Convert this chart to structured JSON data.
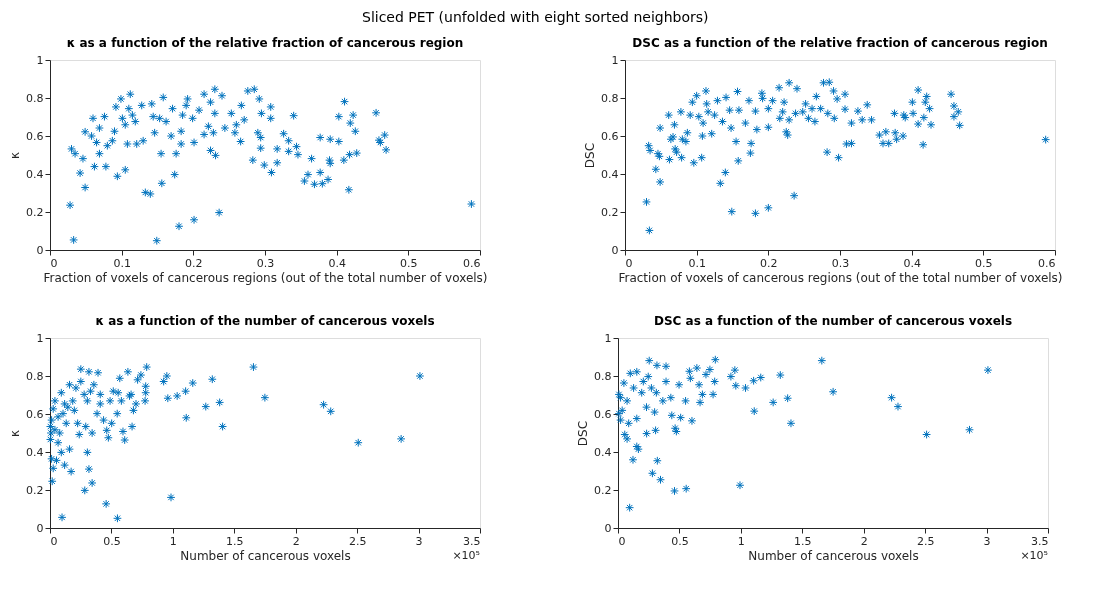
{
  "chart_data": [
    {
      "type": "scatter",
      "title": "κ as a function of the relative fraction of cancerous region",
      "xlabel": "Fraction of voxels of cancerous regions (out of the total number of voxels)",
      "ylabel": "κ",
      "annotations": [
        "Sliced PET (unfolded with eight sorted neighbors)"
      ],
      "color": "#0072bd",
      "marker": "cross",
      "xlim": [
        0,
        0.6
      ],
      "xticks": [
        0,
        0.1,
        0.2,
        0.3,
        0.4,
        0.5,
        0.6
      ],
      "ylim": [
        0,
        1
      ],
      "yticks": [
        0,
        0.2,
        0.4,
        0.6,
        0.8,
        1
      ],
      "x": [
        0.028,
        0.033,
        0.03,
        0.035,
        0.042,
        0.046,
        0.049,
        0.049,
        0.058,
        0.062,
        0.065,
        0.06,
        0.069,
        0.069,
        0.076,
        0.078,
        0.08,
        0.087,
        0.09,
        0.092,
        0.094,
        0.099,
        0.101,
        0.105,
        0.105,
        0.108,
        0.11,
        0.112,
        0.115,
        0.119,
        0.121,
        0.128,
        0.13,
        0.133,
        0.14,
        0.142,
        0.144,
        0.146,
        0.149,
        0.153,
        0.155,
        0.156,
        0.158,
        0.162,
        0.169,
        0.171,
        0.174,
        0.176,
        0.18,
        0.183,
        0.183,
        0.185,
        0.19,
        0.192,
        0.199,
        0.201,
        0.201,
        0.208,
        0.215,
        0.215,
        0.221,
        0.224,
        0.224,
        0.23,
        0.23,
        0.231,
        0.228,
        0.236,
        0.24,
        0.244,
        0.253,
        0.258,
        0.26,
        0.266,
        0.267,
        0.271,
        0.276,
        0.285,
        0.283,
        0.29,
        0.292,
        0.294,
        0.294,
        0.295,
        0.299,
        0.308,
        0.308,
        0.309,
        0.317,
        0.317,
        0.326,
        0.333,
        0.333,
        0.34,
        0.344,
        0.346,
        0.355,
        0.36,
        0.365,
        0.369,
        0.377,
        0.377,
        0.38,
        0.388,
        0.39,
        0.391,
        0.391,
        0.403,
        0.403,
        0.41,
        0.411,
        0.417,
        0.418,
        0.419,
        0.423,
        0.426,
        0.428,
        0.455,
        0.459,
        0.461,
        0.467,
        0.469,
        0.588
      ],
      "values": [
        0.236,
        0.053,
        0.532,
        0.507,
        0.405,
        0.481,
        0.329,
        0.622,
        0.6,
        0.439,
        0.566,
        0.693,
        0.507,
        0.642,
        0.702,
        0.439,
        0.549,
        0.575,
        0.625,
        0.753,
        0.388,
        0.795,
        0.693,
        0.659,
        0.422,
        0.558,
        0.744,
        0.82,
        0.71,
        0.676,
        0.558,
        0.761,
        0.575,
        0.303,
        0.295,
        0.769,
        0.702,
        0.617,
        0.049,
        0.693,
        0.507,
        0.351,
        0.803,
        0.676,
        0.6,
        0.744,
        0.397,
        0.507,
        0.125,
        0.558,
        0.625,
        0.71,
        0.761,
        0.795,
        0.693,
        0.566,
        0.159,
        0.736,
        0.82,
        0.608,
        0.651,
        0.524,
        0.778,
        0.846,
        0.719,
        0.498,
        0.617,
        0.197,
        0.812,
        0.642,
        0.719,
        0.617,
        0.659,
        0.571,
        0.761,
        0.685,
        0.837,
        0.846,
        0.473,
        0.617,
        0.795,
        0.592,
        0.536,
        0.719,
        0.447,
        0.753,
        0.693,
        0.408,
        0.532,
        0.459,
        0.612,
        0.575,
        0.519,
        0.707,
        0.544,
        0.502,
        0.363,
        0.397,
        0.481,
        0.346,
        0.592,
        0.408,
        0.349,
        0.371,
        0.473,
        0.456,
        0.583,
        0.571,
        0.702,
        0.473,
        0.781,
        0.317,
        0.502,
        0.668,
        0.71,
        0.625,
        0.51,
        0.722,
        0.578,
        0.566,
        0.605,
        0.527,
        0.242
      ]
    },
    {
      "type": "scatter",
      "title": "DSC as a function of the relative fraction of cancerous region",
      "xlabel": "Fraction of voxels of cancerous regions (out of the total number of voxels)",
      "ylabel": "DSC",
      "color": "#0072bd",
      "marker": "cross",
      "xlim": [
        0,
        0.6
      ],
      "xticks": [
        0,
        0.1,
        0.2,
        0.3,
        0.4,
        0.5,
        0.6
      ],
      "ylim": [
        0,
        1
      ],
      "yticks": [
        0,
        0.2,
        0.4,
        0.6,
        0.8,
        1
      ],
      "x": [
        0.03,
        0.034,
        0.033,
        0.035,
        0.046,
        0.048,
        0.043,
        0.049,
        0.049,
        0.061,
        0.062,
        0.064,
        0.067,
        0.069,
        0.07,
        0.072,
        0.078,
        0.079,
        0.08,
        0.085,
        0.087,
        0.091,
        0.094,
        0.096,
        0.1,
        0.103,
        0.107,
        0.108,
        0.109,
        0.113,
        0.114,
        0.116,
        0.121,
        0.125,
        0.129,
        0.133,
        0.136,
        0.14,
        0.141,
        0.146,
        0.148,
        0.149,
        0.155,
        0.157,
        0.158,
        0.159,
        0.168,
        0.173,
        0.175,
        0.176,
        0.182,
        0.182,
        0.184,
        0.191,
        0.192,
        0.2,
        0.2,
        0.2,
        0.206,
        0.215,
        0.216,
        0.22,
        0.222,
        0.225,
        0.227,
        0.229,
        0.229,
        0.236,
        0.238,
        0.24,
        0.248,
        0.252,
        0.256,
        0.261,
        0.265,
        0.267,
        0.273,
        0.277,
        0.282,
        0.283,
        0.285,
        0.291,
        0.292,
        0.296,
        0.298,
        0.307,
        0.307,
        0.309,
        0.316,
        0.316,
        0.325,
        0.331,
        0.338,
        0.344,
        0.355,
        0.36,
        0.364,
        0.368,
        0.376,
        0.377,
        0.379,
        0.388,
        0.389,
        0.391,
        0.401,
        0.402,
        0.409,
        0.409,
        0.416,
        0.417,
        0.419,
        0.421,
        0.425,
        0.427,
        0.455,
        0.459,
        0.459,
        0.465,
        0.467,
        0.587
      ],
      "values": [
        0.253,
        0.103,
        0.549,
        0.524,
        0.507,
        0.493,
        0.425,
        0.358,
        0.642,
        0.71,
        0.476,
        0.583,
        0.595,
        0.659,
        0.532,
        0.515,
        0.727,
        0.486,
        0.583,
        0.571,
        0.617,
        0.71,
        0.778,
        0.459,
        0.812,
        0.702,
        0.486,
        0.6,
        0.668,
        0.837,
        0.769,
        0.727,
        0.612,
        0.71,
        0.786,
        0.351,
        0.676,
        0.408,
        0.803,
        0.736,
        0.642,
        0.202,
        0.571,
        0.834,
        0.469,
        0.736,
        0.668,
        0.786,
        0.51,
        0.561,
        0.193,
        0.731,
        0.634,
        0.825,
        0.798,
        0.646,
        0.222,
        0.744,
        0.786,
        0.854,
        0.693,
        0.727,
        0.778,
        0.622,
        0.605,
        0.88,
        0.685,
        0.286,
        0.719,
        0.849,
        0.727,
        0.769,
        0.693,
        0.744,
        0.676,
        0.808,
        0.744,
        0.88,
        0.515,
        0.719,
        0.883,
        0.837,
        0.693,
        0.795,
        0.486,
        0.82,
        0.741,
        0.558,
        0.668,
        0.561,
        0.731,
        0.685,
        0.764,
        0.685,
        0.605,
        0.561,
        0.622,
        0.561,
        0.719,
        0.617,
        0.583,
        0.6,
        0.71,
        0.697,
        0.778,
        0.719,
        0.842,
        0.663,
        0.554,
        0.697,
        0.778,
        0.808,
        0.744,
        0.659,
        0.82,
        0.758,
        0.702,
        0.727,
        0.656,
        0.581
      ]
    },
    {
      "type": "scatter",
      "title": "κ as a function of the number of cancerous voxels",
      "xlabel": "Number of cancerous voxels",
      "ylabel": "κ",
      "annotations": [
        "×10⁵"
      ],
      "color": "#0072bd",
      "marker": "cross",
      "xlim": [
        0,
        3.5
      ],
      "xticks": [
        0,
        0.5,
        1,
        1.5,
        2,
        2.5,
        3,
        3.5
      ],
      "ylim": [
        0,
        1
      ],
      "yticks": [
        0,
        0.2,
        0.4,
        0.6,
        0.8,
        1
      ],
      "x": [
        0.098,
        0.018,
        0.026,
        0.013,
        0.053,
        0.092,
        0.119,
        0.172,
        0.159,
        0.066,
        0.008,
        0.04,
        0.079,
        0.013,
        0.066,
        0.026,
        0.106,
        0.145,
        0.092,
        0.159,
        0.185,
        0.225,
        0.238,
        0.251,
        0.251,
        0.278,
        0.291,
        0.304,
        0.317,
        0.317,
        0.283,
        0.343,
        0.343,
        0.357,
        0.383,
        0.391,
        0.409,
        0.436,
        0.462,
        0.475,
        0.457,
        0.502,
        0.515,
        0.547,
        0.549,
        0.568,
        0.581,
        0.594,
        0.608,
        0.634,
        0.66,
        0.668,
        0.679,
        0.713,
        0.74,
        0.774,
        0.779,
        0.787,
        0.925,
        0.951,
        0.959,
        0.985,
        1.035,
        1.109,
        1.104,
        1.162,
        1.268,
        1.321,
        1.381,
        1.405,
        1.656,
        1.749,
        2.227,
        2.285,
        2.509,
        2.858,
        3.011,
        0.003,
        0.04,
        0.119,
        0.198,
        0.132,
        0.211,
        0.304,
        0.33,
        0.409,
        0.489,
        0.555,
        0.647,
        0.7,
        0.779,
        0.003
      ],
      "values": [
        0.056,
        0.246,
        0.314,
        0.364,
        0.356,
        0.398,
        0.331,
        0.297,
        0.415,
        0.449,
        0.5,
        0.517,
        0.5,
        0.568,
        0.585,
        0.627,
        0.602,
        0.636,
        0.712,
        0.754,
        0.669,
        0.551,
        0.492,
        0.836,
        0.771,
        0.703,
        0.534,
        0.398,
        0.822,
        0.31,
        0.198,
        0.237,
        0.5,
        0.754,
        0.602,
        0.817,
        0.703,
        0.568,
        0.514,
        0.475,
        0.127,
        0.551,
        0.72,
        0.602,
        0.051,
        0.788,
        0.669,
        0.508,
        0.463,
        0.822,
        0.703,
        0.534,
        0.619,
        0.78,
        0.805,
        0.669,
        0.746,
        0.847,
        0.771,
        0.8,
        0.683,
        0.161,
        0.695,
        0.58,
        0.72,
        0.763,
        0.639,
        0.783,
        0.661,
        0.534,
        0.847,
        0.686,
        0.649,
        0.614,
        0.449,
        0.469,
        0.8,
        0.466,
        0.669,
        0.653,
        0.619,
        0.551,
        0.737,
        0.669,
        0.72,
        0.653,
        0.669,
        0.712,
        0.695,
        0.653,
        0.712,
        0.534
      ]
    },
    {
      "type": "scatter",
      "title": "DSC as a function of the number of cancerous voxels",
      "xlabel": "Number of cancerous voxels",
      "ylabel": "DSC",
      "annotations": [
        "×10⁵"
      ],
      "color": "#0072bd",
      "marker": "cross",
      "xlim": [
        0,
        3.5
      ],
      "xticks": [
        0,
        0.5,
        1,
        1.5,
        2,
        2.5,
        3,
        3.5
      ],
      "ylim": [
        0,
        1
      ],
      "yticks": [
        0,
        0.2,
        0.4,
        0.6,
        0.8,
        1
      ],
      "x": [
        0.095,
        0.122,
        0.28,
        0.346,
        0.32,
        0.46,
        0.555,
        0.993,
        0.166,
        0.153,
        0.074,
        0.055,
        0.233,
        0.306,
        0.475,
        0.465,
        0.438,
        0.51,
        0.602,
        0.021,
        0.087,
        0.008,
        0.153,
        0.021,
        0.074,
        0.127,
        0.1,
        0.153,
        0.254,
        0.317,
        0.391,
        0.246,
        0.272,
        0.232,
        0.312,
        0.365,
        0.298,
        0.391,
        0.43,
        0.497,
        0.55,
        0.581,
        0.589,
        0.642,
        0.66,
        0.668,
        0.687,
        0.716,
        0.748,
        0.774,
        0.787,
        0.792,
        0.919,
        0.951,
        0.959,
        1.038,
        1.109,
        1.104,
        1.162,
        1.263,
        1.321,
        1.381,
        1.408,
        1.659,
        1.751,
        2.227,
        2.279,
        2.512,
        2.861,
        3.011,
        0.008,
        0.048,
        0.193,
        0.206,
        0.034
      ],
      "values": [
        0.107,
        0.359,
        0.288,
        0.254,
        0.354,
        0.195,
        0.207,
        0.225,
        0.415,
        0.429,
        0.469,
        0.492,
        0.497,
        0.514,
        0.508,
        0.525,
        0.593,
        0.581,
        0.564,
        0.568,
        0.551,
        0.602,
        0.576,
        0.686,
        0.669,
        0.737,
        0.814,
        0.822,
        0.881,
        0.856,
        0.851,
        0.797,
        0.737,
        0.636,
        0.712,
        0.669,
        0.61,
        0.771,
        0.686,
        0.754,
        0.669,
        0.825,
        0.788,
        0.842,
        0.754,
        0.661,
        0.703,
        0.808,
        0.834,
        0.703,
        0.771,
        0.886,
        0.797,
        0.831,
        0.749,
        0.737,
        0.615,
        0.775,
        0.792,
        0.661,
        0.805,
        0.683,
        0.551,
        0.881,
        0.717,
        0.686,
        0.639,
        0.492,
        0.517,
        0.831,
        0.703,
        0.763,
        0.712,
        0.771,
        0.619
      ]
    }
  ]
}
